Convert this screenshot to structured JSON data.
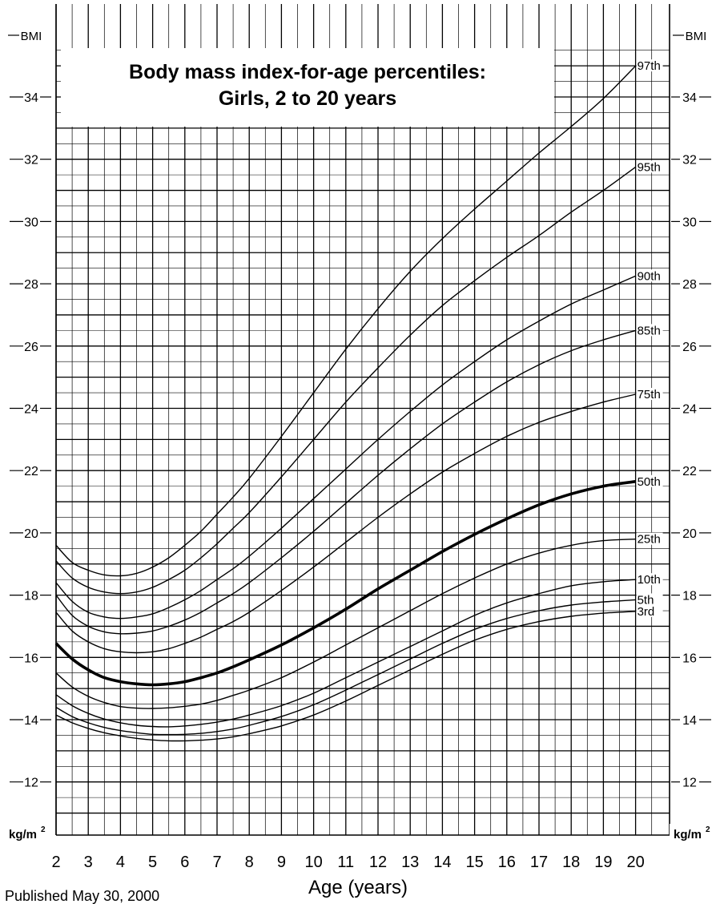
{
  "chart_data": {
    "type": "line",
    "title": "Body mass index-for-age percentiles:",
    "subtitle": "Girls, 2 to 20 years",
    "xlabel": "Age (years)",
    "ylabel_top": "BMI",
    "ylabel_unit": "kg/m",
    "ylabel_unit_sup": "2",
    "xlim": [
      2,
      20
    ],
    "ylim": [
      10.7,
      36
    ],
    "x_ticks": [
      2,
      3,
      4,
      5,
      6,
      7,
      8,
      9,
      10,
      11,
      12,
      13,
      14,
      15,
      16,
      17,
      18,
      19,
      20
    ],
    "y_ticks": [
      12,
      14,
      16,
      18,
      20,
      22,
      24,
      26,
      28,
      30,
      32,
      34
    ],
    "grid": true,
    "x": [
      2,
      2.5,
      3,
      3.5,
      4,
      4.5,
      5,
      5.5,
      6,
      6.5,
      7,
      7.5,
      8,
      9,
      10,
      11,
      12,
      13,
      14,
      15,
      16,
      17,
      18,
      19,
      20
    ],
    "series": [
      {
        "name": "97th",
        "bold": false,
        "values": [
          19.6,
          19.05,
          18.8,
          18.65,
          18.62,
          18.7,
          18.9,
          19.2,
          19.6,
          20.05,
          20.6,
          21.15,
          21.75,
          23.1,
          24.5,
          25.9,
          27.2,
          28.4,
          29.45,
          30.4,
          31.3,
          32.2,
          33.05,
          33.95,
          35.0
        ]
      },
      {
        "name": "95th",
        "bold": false,
        "values": [
          19.1,
          18.55,
          18.25,
          18.1,
          18.05,
          18.1,
          18.25,
          18.5,
          18.8,
          19.2,
          19.65,
          20.15,
          20.65,
          21.8,
          23.0,
          24.2,
          25.3,
          26.35,
          27.3,
          28.1,
          28.85,
          29.55,
          30.3,
          31.0,
          31.75
        ]
      },
      {
        "name": "90th",
        "bold": false,
        "values": [
          18.4,
          17.8,
          17.45,
          17.3,
          17.25,
          17.3,
          17.4,
          17.6,
          17.85,
          18.15,
          18.5,
          18.85,
          19.25,
          20.15,
          21.1,
          22.05,
          23.0,
          23.9,
          24.75,
          25.5,
          26.2,
          26.8,
          27.35,
          27.8,
          28.25
        ]
      },
      {
        "name": "85th",
        "bold": false,
        "values": [
          18.0,
          17.35,
          17.0,
          16.82,
          16.76,
          16.78,
          16.85,
          17.0,
          17.2,
          17.45,
          17.75,
          18.05,
          18.4,
          19.2,
          20.05,
          20.95,
          21.85,
          22.7,
          23.5,
          24.2,
          24.85,
          25.4,
          25.85,
          26.2,
          26.5
        ]
      },
      {
        "name": "75th",
        "bold": false,
        "values": [
          17.45,
          16.85,
          16.5,
          16.28,
          16.18,
          16.15,
          16.18,
          16.28,
          16.45,
          16.65,
          16.9,
          17.15,
          17.45,
          18.15,
          18.9,
          19.7,
          20.5,
          21.25,
          21.95,
          22.55,
          23.1,
          23.55,
          23.9,
          24.2,
          24.45
        ]
      },
      {
        "name": "50th",
        "bold": true,
        "values": [
          16.45,
          15.95,
          15.6,
          15.35,
          15.22,
          15.15,
          15.12,
          15.15,
          15.22,
          15.35,
          15.5,
          15.7,
          15.92,
          16.4,
          16.95,
          17.55,
          18.2,
          18.8,
          19.4,
          19.95,
          20.45,
          20.9,
          21.25,
          21.5,
          21.65
        ]
      },
      {
        "name": "25th",
        "bold": false,
        "values": [
          15.5,
          15.05,
          14.75,
          14.55,
          14.42,
          14.37,
          14.36,
          14.38,
          14.43,
          14.5,
          14.62,
          14.78,
          14.95,
          15.35,
          15.85,
          16.4,
          16.95,
          17.5,
          18.05,
          18.55,
          19.0,
          19.35,
          19.6,
          19.75,
          19.8
        ]
      },
      {
        "name": "10th",
        "bold": false,
        "values": [
          14.8,
          14.45,
          14.2,
          14.02,
          13.9,
          13.82,
          13.78,
          13.77,
          13.8,
          13.85,
          13.92,
          14.02,
          14.15,
          14.45,
          14.85,
          15.35,
          15.85,
          16.35,
          16.85,
          17.35,
          17.75,
          18.05,
          18.3,
          18.43,
          18.5
        ]
      },
      {
        "name": "5th",
        "bold": false,
        "values": [
          14.4,
          14.1,
          13.9,
          13.75,
          13.65,
          13.58,
          13.53,
          13.52,
          13.53,
          13.56,
          13.62,
          13.7,
          13.82,
          14.1,
          14.48,
          14.95,
          15.45,
          15.95,
          16.45,
          16.9,
          17.25,
          17.5,
          17.68,
          17.78,
          17.85
        ]
      },
      {
        "name": "3rd",
        "bold": false,
        "values": [
          14.15,
          13.9,
          13.72,
          13.58,
          13.48,
          13.4,
          13.35,
          13.32,
          13.32,
          13.34,
          13.38,
          13.45,
          13.55,
          13.8,
          14.15,
          14.6,
          15.1,
          15.6,
          16.1,
          16.55,
          16.9,
          17.15,
          17.32,
          17.42,
          17.48
        ]
      }
    ]
  },
  "footer": {
    "published": "Published May 30, 2000"
  }
}
